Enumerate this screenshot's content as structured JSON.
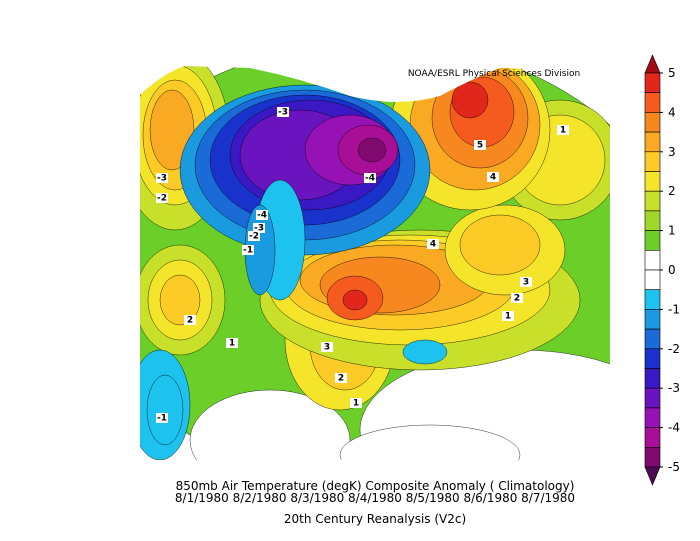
{
  "header": {
    "credit": "NOAA/ESRL Physical Sciences Division"
  },
  "caption": {
    "title": "850mb Air Temperature (degK) Composite Anomaly ( Climatology)",
    "dates": "8/1/1980 8/2/1980 8/3/1980 8/4/1980 8/5/1980 8/6/1980 8/7/1980",
    "source": "20th Century Reanalysis (V2c)"
  },
  "colorbar": {
    "ticks": [
      5,
      4,
      3,
      2,
      1,
      0,
      -1,
      -2,
      -3,
      -4,
      -5
    ],
    "colors": [
      "#a50a14",
      "#e1261c",
      "#f55a1e",
      "#f7871f",
      "#faaa22",
      "#fdcb26",
      "#f5e52a",
      "#c8e02a",
      "#9fd82a",
      "#6ccf29",
      "#ffffff",
      "#ffffff",
      "#1ec2ef",
      "#1a9be0",
      "#1a6ad8",
      "#1a32cc",
      "#3a18c4",
      "#6a14c0",
      "#9612b4",
      "#a80e96",
      "#800a70",
      "#4e0a4e"
    ]
  },
  "contour_labels": [
    -3,
    -4,
    5,
    4,
    -3,
    -2,
    -4,
    -3,
    -2,
    -1,
    4,
    3,
    2,
    1,
    2,
    1,
    3,
    2,
    1,
    -1,
    1
  ]
}
